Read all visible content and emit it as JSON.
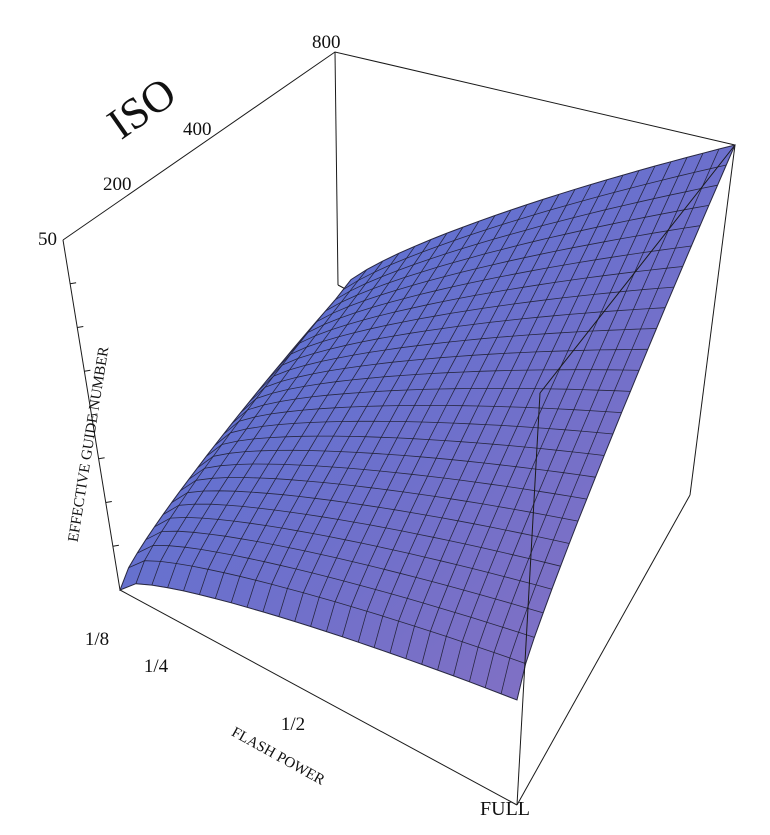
{
  "chart_data": {
    "type": "surface3d",
    "x_axis": {
      "label": "FLASH POWER",
      "ticks": [
        "1/8",
        "1/4",
        "1/2",
        "FULL"
      ],
      "values": [
        0.125,
        0.25,
        0.5,
        1.0
      ]
    },
    "y_axis": {
      "label": "ISO",
      "ticks": [
        "50",
        "200",
        "400",
        "800"
      ],
      "values": [
        50,
        200,
        400,
        800
      ]
    },
    "z_axis": {
      "label": "EFFECTIVE GUIDE NUMBER"
    },
    "surface": {
      "relation": "z proportional to sqrt(flash_power * ISO)",
      "grid_resolution": 25
    },
    "colors": {
      "surface_top": "#4f72d8",
      "surface_bottom": "#8a6fc0",
      "mesh": "#1f1f33",
      "box": "#1a1a1a"
    },
    "grid": true,
    "legend": "none"
  }
}
